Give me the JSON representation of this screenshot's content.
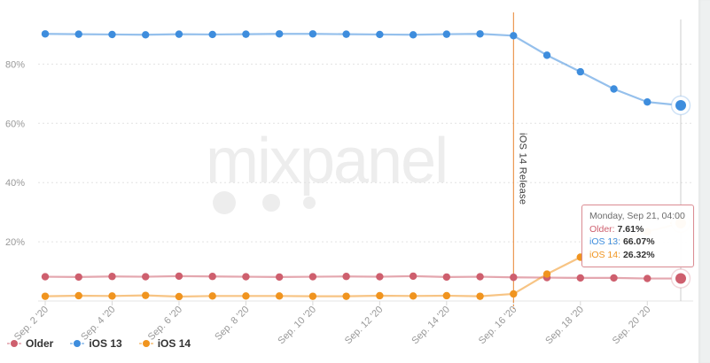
{
  "watermark": {
    "text": "mixpanel"
  },
  "colors": {
    "older": "#CE5F6E",
    "ios13": "#3E8DDD",
    "ios14": "#F0941F",
    "grid": "#e2e2e2",
    "axis_line": "#e6e6e6",
    "tick": "#d8d8d8",
    "tick_label": "#999999",
    "annotation_line": "#E8842F",
    "crosshair": "#cccccc",
    "tooltip_border": "#db8c93",
    "watermark": "#ededed",
    "background": "#ffffff",
    "page_strip": "#eef0f0"
  },
  "chart_data": {
    "type": "line",
    "categories": [
      "Sep 2",
      "Sep 3",
      "Sep 4",
      "Sep 5",
      "Sep 6",
      "Sep 7",
      "Sep 8",
      "Sep 9",
      "Sep 10",
      "Sep 11",
      "Sep 12",
      "Sep 13",
      "Sep 14",
      "Sep 15",
      "Sep 16",
      "Sep 17",
      "Sep 18",
      "Sep 19",
      "Sep 20",
      "Sep 21"
    ],
    "x_tick_labels": [
      "Sep. 2 '20",
      "Sep. 4 '20",
      "Sep. 6 '20",
      "Sep. 8 '20",
      "Sep. 10 '20",
      "Sep. 12 '20",
      "Sep. 14 '20",
      "Sep. 16 '20",
      "Sep. 18 '20",
      "Sep. 20 '20"
    ],
    "x_tick_indices": [
      0,
      2,
      4,
      6,
      8,
      10,
      12,
      14,
      16,
      18
    ],
    "yticks": [
      20,
      40,
      60,
      80
    ],
    "ylim": [
      0,
      100
    ],
    "grid": "horizontal-dashed",
    "legend_position": "bottom-left",
    "series": [
      {
        "name": "Older",
        "color": "#CE5F6E",
        "values": [
          8.2,
          8.1,
          8.3,
          8.2,
          8.4,
          8.3,
          8.2,
          8.1,
          8.2,
          8.3,
          8.2,
          8.4,
          8.1,
          8.2,
          8.0,
          7.9,
          7.8,
          7.8,
          7.6,
          7.61
        ]
      },
      {
        "name": "iOS 13",
        "color": "#3E8DDD",
        "values": [
          90.2,
          90.1,
          90.0,
          89.9,
          90.1,
          90.0,
          90.1,
          90.2,
          90.2,
          90.1,
          90.0,
          89.9,
          90.1,
          90.2,
          89.6,
          83.0,
          77.4,
          71.6,
          67.2,
          66.07
        ]
      },
      {
        "name": "iOS 14",
        "color": "#F0941F",
        "values": [
          1.6,
          1.8,
          1.7,
          1.9,
          1.5,
          1.7,
          1.7,
          1.7,
          1.6,
          1.6,
          1.8,
          1.7,
          1.8,
          1.6,
          2.4,
          9.1,
          14.8,
          20.1,
          23.4,
          26.32
        ]
      }
    ],
    "annotation": {
      "label": "iOS 14 Release",
      "x_index": 14
    },
    "highlight_x_index": 19
  },
  "tooltip": {
    "title": "Monday, Sep 21, 04:00",
    "rows": [
      {
        "label": "Older:",
        "value": "7.61%"
      },
      {
        "label": "iOS 13:",
        "value": "66.07%"
      },
      {
        "label": "iOS 14:",
        "value": "26.32%"
      }
    ]
  }
}
